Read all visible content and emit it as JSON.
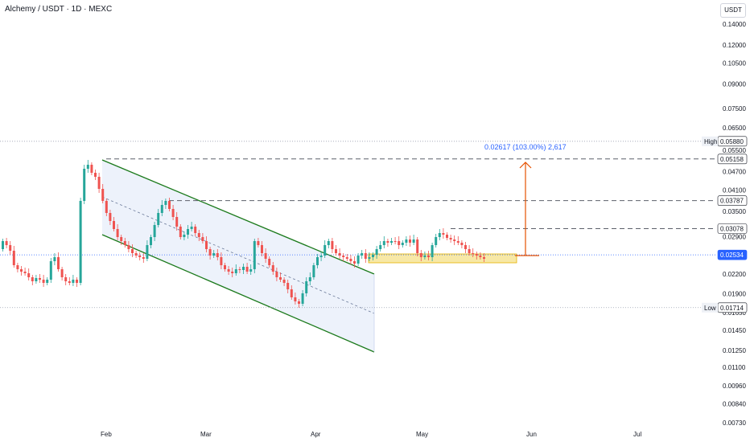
{
  "header": {
    "title": "Alchemy / USDT · 1D · MEXC",
    "currency_button": "USDT"
  },
  "chart_data": {
    "type": "candlestick",
    "y_scale": "log",
    "ylim": [
      0.0068,
      0.156
    ],
    "x_axis_labels": [
      "Feb",
      "Mar",
      "Apr",
      "May",
      "Jun",
      "Jul"
    ],
    "y_tick_labels": [
      "0.14000",
      "0.12000",
      "0.10500",
      "0.09000",
      "0.07500",
      "0.06500",
      "0.05500",
      "0.04700",
      "0.04100",
      "0.03500",
      "0.02900",
      "0.02200",
      "0.01900",
      "0.01650",
      "0.01450",
      "0.01250",
      "0.01100",
      "0.00960",
      "0.00840",
      "0.00730"
    ],
    "price_markers": [
      {
        "label": "",
        "value": "0.05880",
        "tag": "High",
        "style": "dotted"
      },
      {
        "label": "",
        "value": "0.05158",
        "style": "dashed"
      },
      {
        "label": "",
        "value": "0.03787",
        "style": "dashed"
      },
      {
        "label": "",
        "value": "0.03078",
        "style": "dashed"
      },
      {
        "label": "",
        "value": "0.02534",
        "style": "current",
        "color": "#2962ff"
      },
      {
        "label": "",
        "value": "0.01714",
        "tag": "Low",
        "style": "dotted"
      }
    ],
    "measure_annotation": "0.02617 (103.00%) 2,617",
    "colors": {
      "up": "#26a69a",
      "up_body": "#2962ff",
      "down": "#ef5350",
      "channel": "#1b7a1b",
      "channel_fill": "#e6ecfa",
      "measure": "#e65100",
      "support_zone": "#f7e8a6"
    }
  }
}
